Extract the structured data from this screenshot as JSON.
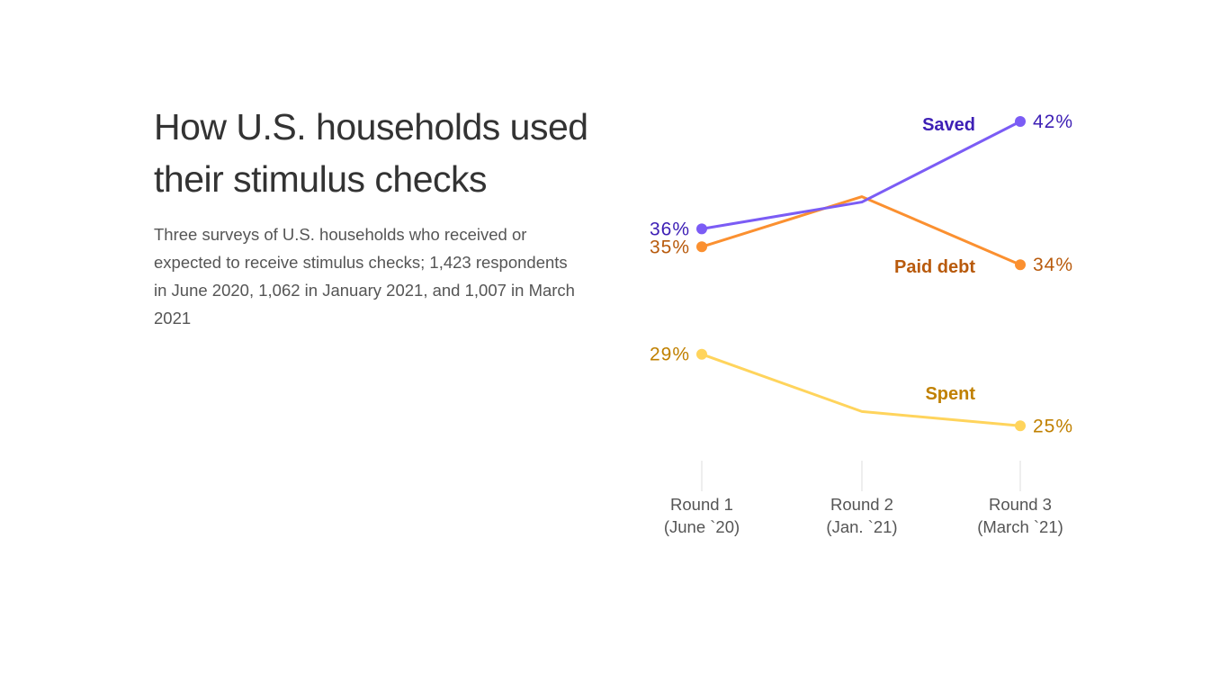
{
  "title": "How U.S. households used their stimulus checks",
  "subtitle": "Three surveys of U.S. households who received or expected to receive stimulus checks; 1,423 respondents in June 2020, 1,062 in January 2021, and 1,007 in March 2021",
  "chart_data": {
    "type": "line",
    "title": "How U.S. households used their stimulus checks",
    "categories": [
      {
        "line1": "Round 1",
        "line2": "(June `20)"
      },
      {
        "line1": "Round 2",
        "line2": "(Jan. `21)"
      },
      {
        "line1": "Round 3",
        "line2": "(March `21)"
      }
    ],
    "unit": "%",
    "grid": false,
    "legend": "direct labels",
    "series": [
      {
        "name": "Saved",
        "values": [
          36,
          37.5,
          42
        ],
        "labels": [
          "36%",
          null,
          "42%"
        ],
        "color": "#7b5cf5",
        "text_color": "#3d1fb5"
      },
      {
        "name": "Paid debt",
        "values": [
          35,
          37.8,
          34
        ],
        "labels": [
          "35%",
          null,
          "34%"
        ],
        "color": "#fb9030",
        "text_color": "#b85a0c"
      },
      {
        "name": "Spent",
        "values": [
          29,
          25.8,
          25
        ],
        "labels": [
          "29%",
          null,
          "25%"
        ],
        "color": "#ffd45c",
        "text_color": "#c08000"
      }
    ]
  }
}
